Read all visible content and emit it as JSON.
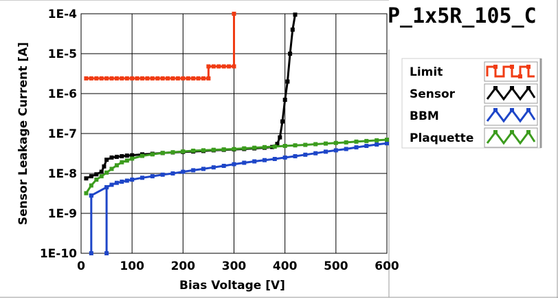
{
  "chart_data": {
    "type": "line",
    "title": "P_1x5R_105_C",
    "xlabel": "Bias Voltage [V]",
    "ylabel": "Sensor Leakage Current [A]",
    "xlim": [
      0,
      600
    ],
    "ylim": [
      1e-10,
      0.0001
    ],
    "y_scale": "log",
    "grid": true,
    "legend_position": "right",
    "x_ticks": [
      "0",
      "100",
      "200",
      "300",
      "400",
      "500",
      "600"
    ],
    "y_ticks": [
      "1E-10",
      "1E-9",
      "1E-8",
      "1E-7",
      "1E-6",
      "1E-5",
      "1E-4"
    ],
    "series": [
      {
        "name": "Limit",
        "color": "#f03c14",
        "points": [
          [
            10,
            2.4e-06
          ],
          [
            20,
            2.4e-06
          ],
          [
            30,
            2.4e-06
          ],
          [
            40,
            2.4e-06
          ],
          [
            50,
            2.4e-06
          ],
          [
            60,
            2.4e-06
          ],
          [
            70,
            2.4e-06
          ],
          [
            80,
            2.4e-06
          ],
          [
            90,
            2.4e-06
          ],
          [
            100,
            2.4e-06
          ],
          [
            110,
            2.4e-06
          ],
          [
            120,
            2.4e-06
          ],
          [
            130,
            2.4e-06
          ],
          [
            140,
            2.4e-06
          ],
          [
            150,
            2.4e-06
          ],
          [
            160,
            2.4e-06
          ],
          [
            170,
            2.4e-06
          ],
          [
            180,
            2.4e-06
          ],
          [
            190,
            2.4e-06
          ],
          [
            200,
            2.4e-06
          ],
          [
            210,
            2.4e-06
          ],
          [
            220,
            2.4e-06
          ],
          [
            230,
            2.4e-06
          ],
          [
            240,
            2.4e-06
          ],
          [
            250,
            2.4e-06
          ],
          [
            250,
            4.8e-06
          ],
          [
            260,
            4.8e-06
          ],
          [
            270,
            4.8e-06
          ],
          [
            280,
            4.8e-06
          ],
          [
            290,
            4.8e-06
          ],
          [
            300,
            4.8e-06
          ],
          [
            300,
            0.0001
          ]
        ]
      },
      {
        "name": "Sensor",
        "color": "#000000",
        "points": [
          [
            10,
            7.5e-09
          ],
          [
            20,
            8.5e-09
          ],
          [
            30,
            9.5e-09
          ],
          [
            40,
            1.1e-08
          ],
          [
            45,
            1.5e-08
          ],
          [
            50,
            2.2e-08
          ],
          [
            60,
            2.5e-08
          ],
          [
            70,
            2.6e-08
          ],
          [
            80,
            2.7e-08
          ],
          [
            90,
            2.8e-08
          ],
          [
            100,
            2.85e-08
          ],
          [
            120,
            3e-08
          ],
          [
            140,
            3.1e-08
          ],
          [
            160,
            3.25e-08
          ],
          [
            180,
            3.35e-08
          ],
          [
            200,
            3.45e-08
          ],
          [
            220,
            3.55e-08
          ],
          [
            240,
            3.65e-08
          ],
          [
            260,
            3.8e-08
          ],
          [
            280,
            3.9e-08
          ],
          [
            300,
            4e-08
          ],
          [
            320,
            4.1e-08
          ],
          [
            340,
            4.25e-08
          ],
          [
            360,
            4.4e-08
          ],
          [
            375,
            4.6e-08
          ],
          [
            385,
            5.5e-08
          ],
          [
            390,
            8e-08
          ],
          [
            395,
            2e-07
          ],
          [
            400,
            7e-07
          ],
          [
            405,
            2e-06
          ],
          [
            410,
            1e-05
          ],
          [
            415,
            4e-05
          ],
          [
            420,
            9.5e-05
          ]
        ]
      },
      {
        "name": "BBM",
        "color": "#1e46c8",
        "points": [
          [
            20,
            2.8e-09
          ],
          [
            20,
            1e-10
          ],
          [
            20,
            2.8e-09
          ],
          [
            50,
            4.5e-09
          ],
          [
            50,
            1e-10
          ],
          [
            50,
            4.5e-09
          ],
          [
            60,
            5.2e-09
          ],
          [
            70,
            5.8e-09
          ],
          [
            80,
            6.2e-09
          ],
          [
            90,
            6.6e-09
          ],
          [
            100,
            7e-09
          ],
          [
            120,
            7.8e-09
          ],
          [
            140,
            8.5e-09
          ],
          [
            160,
            9.3e-09
          ],
          [
            180,
            1e-08
          ],
          [
            200,
            1.1e-08
          ],
          [
            220,
            1.2e-08
          ],
          [
            240,
            1.3e-08
          ],
          [
            260,
            1.42e-08
          ],
          [
            280,
            1.55e-08
          ],
          [
            300,
            1.7e-08
          ],
          [
            320,
            1.85e-08
          ],
          [
            340,
            2e-08
          ],
          [
            360,
            2.15e-08
          ],
          [
            380,
            2.3e-08
          ],
          [
            400,
            2.5e-08
          ],
          [
            420,
            2.7e-08
          ],
          [
            440,
            2.95e-08
          ],
          [
            460,
            3.2e-08
          ],
          [
            480,
            3.5e-08
          ],
          [
            500,
            3.8e-08
          ],
          [
            520,
            4.1e-08
          ],
          [
            540,
            4.5e-08
          ],
          [
            560,
            4.9e-08
          ],
          [
            580,
            5.3e-08
          ],
          [
            600,
            5.7e-08
          ]
        ]
      },
      {
        "name": "Plaquette",
        "color": "#3c9c1e",
        "points": [
          [
            10,
            3.2e-09
          ],
          [
            20,
            5e-09
          ],
          [
            30,
            7e-09
          ],
          [
            40,
            8.5e-09
          ],
          [
            50,
            1.05e-08
          ],
          [
            60,
            1.3e-08
          ],
          [
            70,
            1.6e-08
          ],
          [
            80,
            1.9e-08
          ],
          [
            90,
            2.1e-08
          ],
          [
            100,
            2.35e-08
          ],
          [
            120,
            2.75e-08
          ],
          [
            140,
            3e-08
          ],
          [
            160,
            3.25e-08
          ],
          [
            180,
            3.4e-08
          ],
          [
            200,
            3.55e-08
          ],
          [
            220,
            3.7e-08
          ],
          [
            240,
            3.8e-08
          ],
          [
            260,
            3.9e-08
          ],
          [
            280,
            4e-08
          ],
          [
            300,
            4.1e-08
          ],
          [
            320,
            4.25e-08
          ],
          [
            340,
            4.4e-08
          ],
          [
            360,
            4.55e-08
          ],
          [
            380,
            4.7e-08
          ],
          [
            400,
            4.9e-08
          ],
          [
            420,
            5.05e-08
          ],
          [
            440,
            5.2e-08
          ],
          [
            460,
            5.4e-08
          ],
          [
            480,
            5.6e-08
          ],
          [
            500,
            5.8e-08
          ],
          [
            520,
            6e-08
          ],
          [
            540,
            6.25e-08
          ],
          [
            560,
            6.5e-08
          ],
          [
            580,
            6.75e-08
          ],
          [
            600,
            7e-08
          ]
        ]
      }
    ]
  }
}
